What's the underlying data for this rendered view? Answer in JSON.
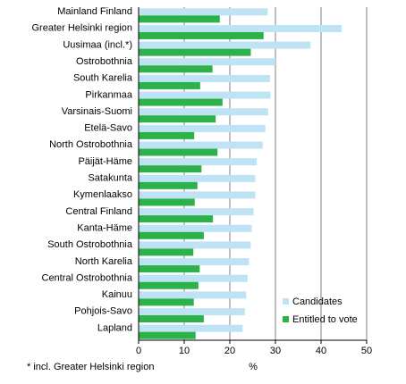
{
  "chart_data": {
    "type": "bar",
    "orientation": "horizontal",
    "categories": [
      "Mainland Finland",
      "Greater Helsinki region",
      "Uusimaa (incl.*)",
      "Ostrobothnia",
      "South Karelia",
      "Pirkanmaa",
      "Varsinais-Suomi",
      "Etelä-Savo",
      "North Ostrobothnia",
      "Päijät-Häme",
      "Satakunta",
      "Kymenlaakso",
      "Central Finland",
      "Kanta-Häme",
      "South Ostrobothnia",
      "North Karelia",
      "Central Ostrobothnia",
      "Kainuu",
      "Pohjois-Savo",
      "Lapland"
    ],
    "series": [
      {
        "name": "Candidates",
        "color": "#bde3f5",
        "values": [
          28.3,
          44.5,
          37.7,
          30.0,
          28.8,
          28.9,
          28.4,
          27.8,
          27.2,
          25.9,
          25.6,
          25.6,
          25.2,
          24.8,
          24.6,
          24.2,
          23.9,
          23.6,
          23.3,
          22.8
        ]
      },
      {
        "name": "Entitled to vote",
        "color": "#2db24a",
        "values": [
          17.8,
          27.4,
          24.6,
          16.2,
          13.5,
          18.4,
          16.9,
          12.2,
          17.3,
          13.8,
          12.9,
          12.3,
          16.3,
          14.3,
          12.0,
          13.4,
          13.1,
          12.1,
          14.3,
          12.5
        ]
      }
    ],
    "xticks": [
      "0",
      "10",
      "20",
      "30",
      "40",
      "50"
    ],
    "xlim": [
      0,
      50
    ],
    "xunit": "%",
    "grid": true,
    "legend_position": "lower-right",
    "footnote": "* incl. Greater Helsinki region"
  }
}
